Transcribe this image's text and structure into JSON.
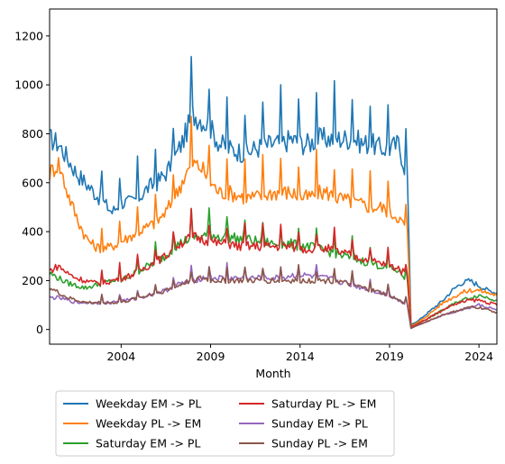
{
  "chart_data": {
    "type": "line",
    "xlabel": "Month",
    "ylabel": "",
    "xlim": [
      2000.0,
      2025.0
    ],
    "ylim": [
      -60,
      1310
    ],
    "x_ticks": [
      2004,
      2009,
      2014,
      2019,
      2024
    ],
    "y_ticks": [
      0,
      200,
      400,
      600,
      800,
      1000,
      1200
    ],
    "grid": false,
    "legend_position": "below-plot",
    "series": [
      {
        "name": "Weekday EM -> PL",
        "color": "#1f77b4",
        "x": [
          2000.0,
          2000.5,
          2001.0,
          2001.5,
          2002.0,
          2002.5,
          2003.0,
          2003.5,
          2004.0,
          2004.5,
          2005.0,
          2005.5,
          2006.0,
          2006.5,
          2007.0,
          2007.5,
          2008.0,
          2008.5,
          2009.0,
          2009.5,
          2010.0,
          2010.5,
          2011.0,
          2011.5,
          2012.0,
          2012.5,
          2013.0,
          2013.5,
          2014.0,
          2014.5,
          2015.0,
          2015.5,
          2016.0,
          2016.5,
          2017.0,
          2017.5,
          2018.0,
          2018.5,
          2019.0,
          2019.5,
          2020.0,
          2020.2,
          2020.5,
          2021.0,
          2021.5,
          2022.0,
          2022.5,
          2023.0,
          2023.5,
          2024.0,
          2024.5,
          2025.0
        ],
        "values": [
          780,
          760,
          700,
          640,
          600,
          560,
          520,
          480,
          520,
          520,
          540,
          580,
          600,
          640,
          700,
          780,
          880,
          860,
          820,
          760,
          740,
          730,
          720,
          740,
          750,
          760,
          760,
          780,
          760,
          760,
          780,
          780,
          780,
          780,
          780,
          760,
          760,
          740,
          740,
          760,
          620,
          20,
          30,
          60,
          90,
          120,
          160,
          190,
          200,
          180,
          160,
          150
        ]
      },
      {
        "name": "Weekday PL -> EM",
        "color": "#ff7f0e",
        "x": [
          2000.0,
          2000.5,
          2001.0,
          2001.5,
          2002.0,
          2002.5,
          2003.0,
          2003.5,
          2004.0,
          2004.5,
          2005.0,
          2005.5,
          2006.0,
          2006.5,
          2007.0,
          2007.5,
          2008.0,
          2008.5,
          2009.0,
          2009.5,
          2010.0,
          2010.5,
          2011.0,
          2011.5,
          2012.0,
          2012.5,
          2013.0,
          2013.5,
          2014.0,
          2014.5,
          2015.0,
          2015.5,
          2016.0,
          2016.5,
          2017.0,
          2017.5,
          2018.0,
          2018.5,
          2019.0,
          2019.5,
          2020.0,
          2020.2,
          2020.5,
          2021.0,
          2021.5,
          2022.0,
          2022.5,
          2023.0,
          2023.5,
          2024.0,
          2024.5,
          2025.0
        ],
        "values": [
          640,
          680,
          560,
          460,
          380,
          340,
          330,
          340,
          360,
          380,
          400,
          420,
          440,
          480,
          540,
          620,
          680,
          660,
          600,
          560,
          560,
          550,
          540,
          540,
          550,
          560,
          560,
          560,
          540,
          540,
          560,
          560,
          540,
          530,
          520,
          510,
          500,
          500,
          480,
          460,
          400,
          15,
          25,
          50,
          80,
          110,
          130,
          150,
          160,
          160,
          150,
          140
        ]
      },
      {
        "name": "Saturday EM -> PL",
        "color": "#2ca02c",
        "x": [
          2000.0,
          2000.5,
          2001.0,
          2001.5,
          2002.0,
          2002.5,
          2003.0,
          2003.5,
          2004.0,
          2004.5,
          2005.0,
          2005.5,
          2006.0,
          2006.5,
          2007.0,
          2007.5,
          2008.0,
          2008.5,
          2009.0,
          2009.5,
          2010.0,
          2010.5,
          2011.0,
          2011.5,
          2012.0,
          2012.5,
          2013.0,
          2013.5,
          2014.0,
          2014.5,
          2015.0,
          2015.5,
          2016.0,
          2016.5,
          2017.0,
          2017.5,
          2018.0,
          2018.5,
          2019.0,
          2019.5,
          2020.0,
          2020.2,
          2020.5,
          2021.0,
          2021.5,
          2022.0,
          2022.5,
          2023.0,
          2023.5,
          2024.0,
          2024.5,
          2025.0
        ],
        "values": [
          230,
          210,
          190,
          180,
          170,
          180,
          190,
          200,
          200,
          220,
          240,
          260,
          280,
          300,
          340,
          360,
          380,
          380,
          390,
          380,
          380,
          370,
          370,
          360,
          360,
          350,
          350,
          350,
          340,
          340,
          330,
          320,
          310,
          300,
          290,
          280,
          270,
          260,
          250,
          240,
          200,
          10,
          20,
          40,
          60,
          80,
          100,
          120,
          130,
          140,
          130,
          120
        ]
      },
      {
        "name": "Saturday PL -> EM",
        "color": "#d62728",
        "x": [
          2000.0,
          2000.5,
          2001.0,
          2001.5,
          2002.0,
          2002.5,
          2003.0,
          2003.5,
          2004.0,
          2004.5,
          2005.0,
          2005.5,
          2006.0,
          2006.5,
          2007.0,
          2007.5,
          2008.0,
          2008.5,
          2009.0,
          2009.5,
          2010.0,
          2010.5,
          2011.0,
          2011.5,
          2012.0,
          2012.5,
          2013.0,
          2013.5,
          2014.0,
          2014.5,
          2015.0,
          2015.5,
          2016.0,
          2016.5,
          2017.0,
          2017.5,
          2018.0,
          2018.5,
          2019.0,
          2019.5,
          2020.0,
          2020.2,
          2020.5,
          2021.0,
          2021.5,
          2022.0,
          2022.5,
          2023.0,
          2023.5,
          2024.0,
          2024.5,
          2025.0
        ],
        "values": [
          240,
          260,
          230,
          210,
          200,
          190,
          190,
          200,
          210,
          220,
          240,
          260,
          280,
          300,
          340,
          360,
          380,
          370,
          360,
          350,
          350,
          340,
          340,
          340,
          340,
          340,
          340,
          340,
          330,
          330,
          330,
          330,
          320,
          310,
          300,
          290,
          280,
          270,
          260,
          250,
          220,
          10,
          20,
          40,
          60,
          80,
          100,
          110,
          120,
          120,
          110,
          100
        ]
      },
      {
        "name": "Sunday EM -> PL",
        "color": "#9467bd",
        "x": [
          2000.0,
          2000.5,
          2001.0,
          2001.5,
          2002.0,
          2002.5,
          2003.0,
          2003.5,
          2004.0,
          2004.5,
          2005.0,
          2005.5,
          2006.0,
          2006.5,
          2007.0,
          2007.5,
          2008.0,
          2008.5,
          2009.0,
          2009.5,
          2010.0,
          2010.5,
          2011.0,
          2011.5,
          2012.0,
          2012.5,
          2013.0,
          2013.5,
          2014.0,
          2014.5,
          2015.0,
          2015.5,
          2016.0,
          2016.5,
          2017.0,
          2017.5,
          2018.0,
          2018.5,
          2019.0,
          2019.5,
          2020.0,
          2020.2,
          2020.5,
          2021.0,
          2021.5,
          2022.0,
          2022.5,
          2023.0,
          2023.5,
          2024.0,
          2024.5,
          2025.0
        ],
        "values": [
          130,
          130,
          120,
          110,
          110,
          110,
          110,
          110,
          120,
          120,
          130,
          140,
          150,
          160,
          180,
          190,
          200,
          210,
          210,
          210,
          210,
          210,
          210,
          210,
          210,
          210,
          210,
          220,
          220,
          220,
          210,
          210,
          200,
          190,
          180,
          170,
          160,
          150,
          140,
          120,
          100,
          5,
          15,
          30,
          45,
          60,
          70,
          80,
          90,
          100,
          90,
          80
        ]
      },
      {
        "name": "Sunday PL -> EM",
        "color": "#8c564b",
        "x": [
          2000.0,
          2000.5,
          2001.0,
          2001.5,
          2002.0,
          2002.5,
          2003.0,
          2003.5,
          2004.0,
          2004.5,
          2005.0,
          2005.5,
          2006.0,
          2006.5,
          2007.0,
          2007.5,
          2008.0,
          2008.5,
          2009.0,
          2009.5,
          2010.0,
          2010.5,
          2011.0,
          2011.5,
          2012.0,
          2012.5,
          2013.0,
          2013.5,
          2014.0,
          2014.5,
          2015.0,
          2015.5,
          2016.0,
          2016.5,
          2017.0,
          2017.5,
          2018.0,
          2018.5,
          2019.0,
          2019.5,
          2020.0,
          2020.2,
          2020.5,
          2021.0,
          2021.5,
          2022.0,
          2022.5,
          2023.0,
          2023.5,
          2024.0,
          2024.5,
          2025.0
        ],
        "values": [
          170,
          150,
          130,
          120,
          110,
          110,
          110,
          110,
          110,
          120,
          130,
          140,
          150,
          160,
          170,
          190,
          200,
          210,
          200,
          200,
          200,
          200,
          200,
          200,
          200,
          200,
          200,
          200,
          200,
          200,
          200,
          200,
          200,
          190,
          180,
          170,
          160,
          150,
          140,
          120,
          100,
          5,
          15,
          30,
          45,
          60,
          70,
          80,
          90,
          90,
          80,
          70
        ]
      }
    ]
  }
}
